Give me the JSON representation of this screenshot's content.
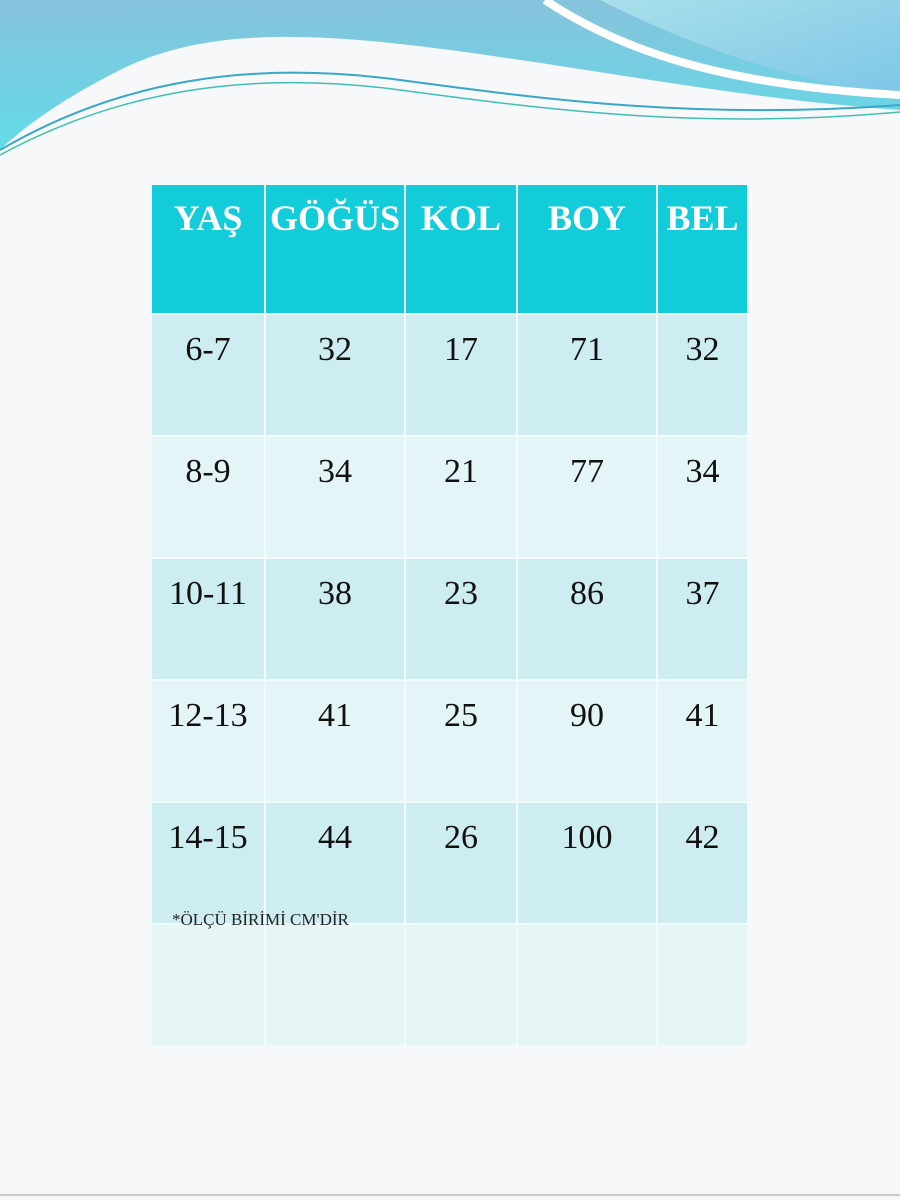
{
  "table": {
    "headers": [
      "YAŞ",
      "GÖĞÜS",
      "KOL",
      "BOY",
      "BEL"
    ],
    "rows": [
      [
        "6-7",
        "32",
        "17",
        "71",
        "32"
      ],
      [
        "8-9",
        "34",
        "21",
        "77",
        "34"
      ],
      [
        "10-11",
        "38",
        "23",
        "86",
        "37"
      ],
      [
        "12-13",
        "41",
        "25",
        "90",
        "41"
      ],
      [
        "14-15",
        "44",
        "26",
        "100",
        "42"
      ]
    ],
    "note": "*ÖLÇÜ BİRİMİ CM'DİR"
  },
  "colors": {
    "header": "#12ccd9",
    "row_dark": "#cdedf0",
    "row_light": "#e3f5f6"
  }
}
